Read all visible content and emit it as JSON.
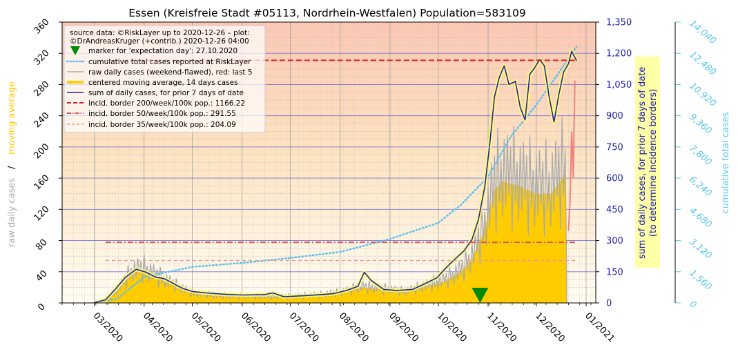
{
  "chart_data": {
    "type": "line",
    "title": "Essen (Kreisfreie Stadt #05113, Nordrhein-Westfalen) Population=583109",
    "x_ticks": [
      "03/2020",
      "04/2020",
      "05/2020",
      "06/2020",
      "07/2020",
      "08/2020",
      "09/2020",
      "10/2020",
      "11/2020",
      "12/2020",
      "01/2021"
    ],
    "left_axis": {
      "label_part1": "raw daily cases",
      "label_sep": "/",
      "label_part2": "moving average",
      "ticks": [
        "0",
        "40",
        "80",
        "120",
        "160",
        "200",
        "240",
        "280",
        "320",
        "360"
      ],
      "ylim": [
        0,
        360
      ]
    },
    "right_axis": {
      "label_line1": "sum of daily cases, for prior 7 days of date",
      "label_line2": "(to determine incidence borders)",
      "ticks": [
        "0",
        "150",
        "300",
        "450",
        "600",
        "750",
        "900",
        "1,050",
        "1,200",
        "1,350"
      ],
      "ylim": [
        0,
        1350
      ]
    },
    "right_axis2": {
      "label": "cumulative total cases",
      "ticks": [
        "0",
        "1,560",
        "3,120",
        "4,680",
        "6,240",
        "7,800",
        "9,360",
        "10,920",
        "12,480",
        "14,040"
      ],
      "ylim": [
        0,
        14040
      ]
    },
    "legend": {
      "placement": "upper-left",
      "header1": "source data: ©RiskLayer up to 2020-12-26 – plot:",
      "header2": "©DrAndreasKruger (+contrib.) 2020-12-26 04:00",
      "entries": [
        "marker for 'expectation day': 27.10.2020",
        "cumulative total cases reported at RiskLayer",
        "raw daily cases (weekend-flawed), red: last 5",
        "centered moving average, 14 days cases",
        "sum of daily cases, for prior 7 days of date",
        "incid. border 200/week/100k pop.: 1166.22",
        "incid. border 50/week/100k pop.: 291.55",
        "incid. border 35/week/100k pop.: 204.09"
      ]
    },
    "incidence_borders": [
      1166.22,
      291.55,
      204.09
    ],
    "expectation_day": "2020-10-27",
    "colors": {
      "raw": "#aaaaaa",
      "raw_last5": "#f08080",
      "moving_avg": "#ffcc00",
      "sum7": "#2222aa",
      "cumulative": "#5bc0f0",
      "border200": "#dd2222",
      "border50": "#dd5555",
      "border35": "#ee9999",
      "marker": "#008800",
      "right_axis": "#1a1aaa",
      "right_axis2": "#55c8f0"
    },
    "sum7_series": [
      [
        "2020-03-01",
        2
      ],
      [
        "2020-03-08",
        15
      ],
      [
        "2020-03-14",
        65
      ],
      [
        "2020-03-20",
        120
      ],
      [
        "2020-03-27",
        162
      ],
      [
        "2020-04-02",
        148
      ],
      [
        "2020-04-08",
        125
      ],
      [
        "2020-04-14",
        115
      ],
      [
        "2020-04-20",
        90
      ],
      [
        "2020-04-25",
        70
      ],
      [
        "2020-05-01",
        55
      ],
      [
        "2020-05-10",
        48
      ],
      [
        "2020-05-20",
        42
      ],
      [
        "2020-06-01",
        38
      ],
      [
        "2020-06-15",
        40
      ],
      [
        "2020-06-20",
        48
      ],
      [
        "2020-06-27",
        30
      ],
      [
        "2020-07-10",
        35
      ],
      [
        "2020-07-20",
        40
      ],
      [
        "2020-07-28",
        45
      ],
      [
        "2020-08-05",
        60
      ],
      [
        "2020-08-12",
        80
      ],
      [
        "2020-08-16",
        148
      ],
      [
        "2020-08-20",
        110
      ],
      [
        "2020-08-28",
        65
      ],
      [
        "2020-09-05",
        60
      ],
      [
        "2020-09-15",
        65
      ],
      [
        "2020-09-22",
        90
      ],
      [
        "2020-09-30",
        120
      ],
      [
        "2020-10-06",
        170
      ],
      [
        "2020-10-12",
        215
      ],
      [
        "2020-10-17",
        250
      ],
      [
        "2020-10-22",
        305
      ],
      [
        "2020-10-26",
        400
      ],
      [
        "2020-10-30",
        560
      ],
      [
        "2020-11-02",
        760
      ],
      [
        "2020-11-05",
        990
      ],
      [
        "2020-11-08",
        1085
      ],
      [
        "2020-11-11",
        1140
      ],
      [
        "2020-11-14",
        1050
      ],
      [
        "2020-11-18",
        1065
      ],
      [
        "2020-11-21",
        940
      ],
      [
        "2020-11-24",
        880
      ],
      [
        "2020-11-27",
        1100
      ],
      [
        "2020-11-30",
        1130
      ],
      [
        "2020-12-03",
        1170
      ],
      [
        "2020-12-06",
        1140
      ],
      [
        "2020-12-09",
        990
      ],
      [
        "2020-12-12",
        870
      ],
      [
        "2020-12-15",
        1000
      ],
      [
        "2020-12-18",
        1110
      ],
      [
        "2020-12-21",
        1150
      ],
      [
        "2020-12-23",
        1210
      ],
      [
        "2020-12-26",
        1165
      ]
    ],
    "moving_avg_series": [
      [
        "2020-03-01",
        0
      ],
      [
        "2020-03-08",
        3
      ],
      [
        "2020-03-15",
        15
      ],
      [
        "2020-03-25",
        40
      ],
      [
        "2020-04-01",
        42
      ],
      [
        "2020-04-10",
        32
      ],
      [
        "2020-04-20",
        22
      ],
      [
        "2020-05-01",
        12
      ],
      [
        "2020-05-15",
        9
      ],
      [
        "2020-06-01",
        8
      ],
      [
        "2020-06-20",
        8
      ],
      [
        "2020-07-01",
        8
      ],
      [
        "2020-07-20",
        10
      ],
      [
        "2020-08-01",
        13
      ],
      [
        "2020-08-15",
        20
      ],
      [
        "2020-08-25",
        18
      ],
      [
        "2020-09-10",
        14
      ],
      [
        "2020-09-25",
        22
      ],
      [
        "2020-10-05",
        28
      ],
      [
        "2020-10-15",
        40
      ],
      [
        "2020-10-22",
        57
      ],
      [
        "2020-10-28",
        85
      ],
      [
        "2020-11-01",
        110
      ],
      [
        "2020-11-05",
        145
      ],
      [
        "2020-11-10",
        156
      ],
      [
        "2020-11-20",
        150
      ],
      [
        "2020-12-01",
        140
      ],
      [
        "2020-12-10",
        140
      ],
      [
        "2020-12-19",
        165
      ],
      [
        "2020-12-20",
        0
      ]
    ],
    "cumulative_series": [
      [
        "2020-03-01",
        0
      ],
      [
        "2020-03-15",
        200
      ],
      [
        "2020-04-01",
        1300
      ],
      [
        "2020-05-01",
        1800
      ],
      [
        "2020-06-01",
        2000
      ],
      [
        "2020-07-01",
        2250
      ],
      [
        "2020-08-01",
        2550
      ],
      [
        "2020-09-01",
        3200
      ],
      [
        "2020-10-01",
        4000
      ],
      [
        "2020-10-15",
        4900
      ],
      [
        "2020-11-01",
        6300
      ],
      [
        "2020-11-15",
        8300
      ],
      [
        "2020-12-01",
        9900
      ],
      [
        "2020-12-15",
        11500
      ],
      [
        "2020-12-26",
        12800
      ]
    ],
    "raw_last5": [
      [
        "2020-12-21",
        92
      ],
      [
        "2020-12-22",
        130
      ],
      [
        "2020-12-23",
        220
      ],
      [
        "2020-12-24",
        160
      ],
      [
        "2020-12-25",
        285
      ]
    ]
  }
}
